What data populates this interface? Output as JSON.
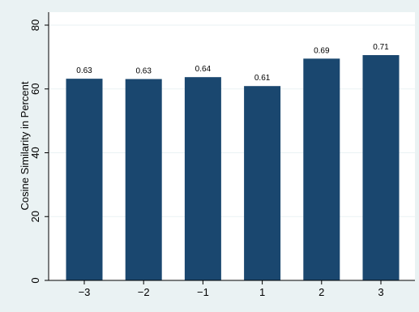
{
  "chart_data": {
    "type": "bar",
    "categories": [
      "−3",
      "−2",
      "−1",
      "1",
      "2",
      "3"
    ],
    "values": [
      63.2,
      63.1,
      63.7,
      60.9,
      69.5,
      70.6
    ],
    "data_labels": [
      "0.63",
      "0.63",
      "0.64",
      "0.61",
      "0.69",
      "0.71"
    ],
    "title": "",
    "xlabel": "",
    "ylabel": "Cosine Similarity in Percent",
    "ylim": [
      0,
      80
    ],
    "yticks": [
      0,
      20,
      40,
      60,
      80
    ],
    "grid": true,
    "colors": {
      "bar": "#1a476f",
      "plot_background": "#ffffff",
      "outer_background": "#eaf2f3",
      "grid": "#eaf2f3"
    }
  }
}
